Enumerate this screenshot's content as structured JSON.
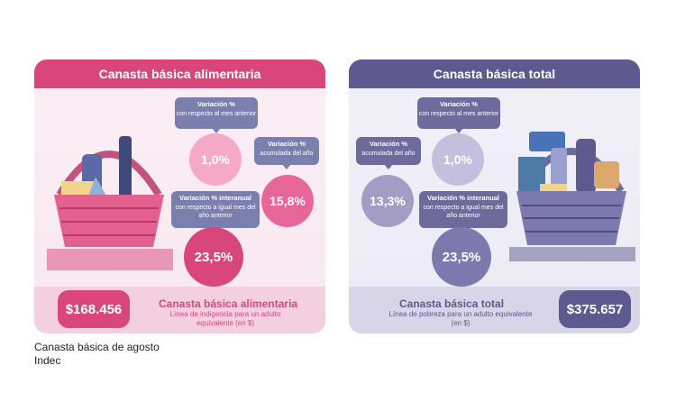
{
  "left_panel": {
    "title": "Canasta básica alimentaria",
    "tag_monthly": {
      "title": "Variación %",
      "sub": "con respecto al mes anterior"
    },
    "tag_year": {
      "title": "Variación %",
      "sub": "acumulada del año"
    },
    "tag_interannual": {
      "title": "Variación % interanual",
      "sub": "con respecto a igual mes del año anterior"
    },
    "value_monthly": "1,0%",
    "value_year": "15,8%",
    "value_interannual": "23,5%",
    "price": "$168.456",
    "footer_title": "Canasta básica alimentaria",
    "footer_sub": "Línea de indigencia para un adulto equivalente (en $)",
    "colors": {
      "accent": "#d8467c",
      "tag": "#7b7fae"
    }
  },
  "right_panel": {
    "title": "Canasta básica total",
    "tag_monthly": {
      "title": "Variación %",
      "sub": "con respecto al mes anterior"
    },
    "tag_year": {
      "title": "Variación %",
      "sub": "acumulada del año"
    },
    "tag_interannual": {
      "title": "Variación % interanual",
      "sub": "con respecto a igual mes del año anterior"
    },
    "value_monthly": "1,0%",
    "value_year": "13,3%",
    "value_interannual": "23,5%",
    "price": "$375.657",
    "footer_title": "Canasta básica total",
    "footer_sub": "Línea de pobreza para un adulto equivalente (en $)",
    "colors": {
      "accent": "#5c5a8e",
      "tag": "#6c6b9c"
    }
  },
  "caption": {
    "line1": "Canasta básica de agosto",
    "line2": "Indec"
  }
}
